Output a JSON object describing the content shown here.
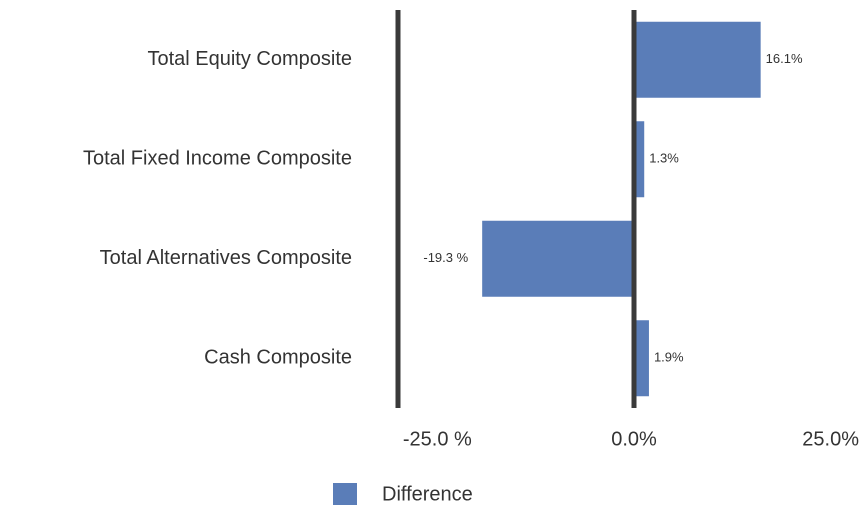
{
  "chart_data": {
    "type": "bar",
    "orientation": "horizontal",
    "categories": [
      "Total Equity Composite",
      "Total Fixed Income Composite",
      "Total Alternatives Composite",
      "Cash Composite"
    ],
    "series": [
      {
        "name": "Difference",
        "color": "#5a7db8",
        "values": [
          16.1,
          1.3,
          -19.3,
          1.9
        ],
        "value_labels": [
          "16.1%",
          "1.3%",
          "-19.3 %",
          "1.9%"
        ]
      }
    ],
    "xlim": [
      -30,
      30
    ],
    "xticks": [
      {
        "value": -25,
        "label": "-25.0 %"
      },
      {
        "value": 0,
        "label": "0.0%"
      },
      {
        "value": 25,
        "label": "25.0%"
      }
    ],
    "legend": "bottom"
  }
}
